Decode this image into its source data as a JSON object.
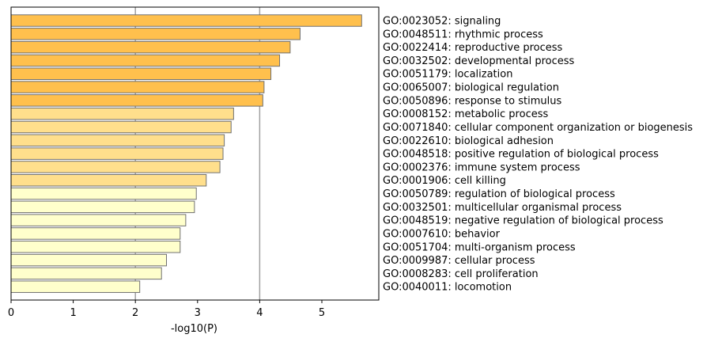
{
  "chart_data": {
    "type": "bar",
    "orientation": "horizontal",
    "xlabel": "-log10(P)",
    "xlim": [
      0,
      5.92
    ],
    "xticks": [
      0,
      1,
      2,
      3,
      4,
      5
    ],
    "vlines": [
      2,
      4
    ],
    "grid": false,
    "categories": [
      "GO:0023052: signaling",
      "GO:0048511: rhythmic process",
      "GO:0022414: reproductive process",
      "GO:0032502: developmental process",
      "GO:0051179: localization",
      "GO:0065007: biological regulation",
      "GO:0050896: response to stimulus",
      "GO:0008152: metabolic process",
      "GO:0071840: cellular component organization or biogenesis",
      "GO:0022610: biological adhesion",
      "GO:0048518: positive regulation of biological process",
      "GO:0002376: immune system process",
      "GO:0001906: cell killing",
      "GO:0050789: regulation of biological process",
      "GO:0032501: multicellular organismal process",
      "GO:0048519: negative regulation of biological process",
      "GO:0007610: behavior",
      "GO:0051704: multi-organism process",
      "GO:0009987: cellular process",
      "GO:0008283: cell proliferation",
      "GO:0040011: locomotion"
    ],
    "values": [
      5.64,
      4.65,
      4.49,
      4.32,
      4.18,
      4.07,
      4.05,
      3.58,
      3.54,
      3.43,
      3.41,
      3.36,
      3.14,
      2.98,
      2.95,
      2.81,
      2.72,
      2.72,
      2.5,
      2.42,
      2.07
    ],
    "colors": {
      "high": "#FFC04D",
      "mid": "#FFDF8C",
      "low": "#FFFFCC",
      "bar_edge": "#707070",
      "vline": "#A0A0A0"
    },
    "color_thresholds": [
      4,
      3
    ]
  }
}
